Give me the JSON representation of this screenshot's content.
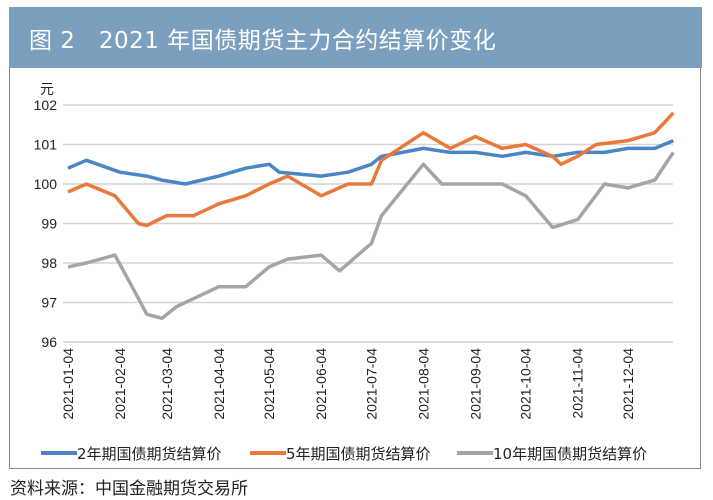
{
  "header": {
    "title": "图 2   2021 年国债期货主力合约结算价变化"
  },
  "source": "资料来源：中国金融期货交易所",
  "chart_data": {
    "type": "line",
    "title": "图 2   2021 年国债期货主力合约结算价变化",
    "ylabel": "元",
    "xlabel": "",
    "ylim": [
      96,
      102
    ],
    "yticks": [
      96,
      97,
      98,
      99,
      100,
      101,
      102
    ],
    "xticks": [
      "2021-01-04",
      "2021-02-04",
      "2021-03-04",
      "2021-04-04",
      "2021-05-04",
      "2021-06-04",
      "2021-07-04",
      "2021-08-04",
      "2021-09-04",
      "2021-10-04",
      "2021-11-04",
      "2021-12-04"
    ],
    "grid": "horizontal",
    "legend": "bottom",
    "series": [
      {
        "name": "2年期国债期货结算价",
        "color": "#4a86c5",
        "points": [
          [
            "2021-01-04",
            100.4
          ],
          [
            "2021-01-15",
            100.6
          ],
          [
            "2021-02-04",
            100.3
          ],
          [
            "2021-02-20",
            100.2
          ],
          [
            "2021-03-01",
            100.1
          ],
          [
            "2021-03-15",
            100.0
          ],
          [
            "2021-04-04",
            100.2
          ],
          [
            "2021-04-20",
            100.4
          ],
          [
            "2021-05-04",
            100.5
          ],
          [
            "2021-05-10",
            100.3
          ],
          [
            "2021-06-04",
            100.2
          ],
          [
            "2021-06-20",
            100.3
          ],
          [
            "2021-07-04",
            100.5
          ],
          [
            "2021-07-10",
            100.7
          ],
          [
            "2021-08-04",
            100.9
          ],
          [
            "2021-08-20",
            100.8
          ],
          [
            "2021-09-04",
            100.8
          ],
          [
            "2021-09-20",
            100.7
          ],
          [
            "2021-10-04",
            100.8
          ],
          [
            "2021-10-20",
            100.7
          ],
          [
            "2021-11-04",
            100.8
          ],
          [
            "2021-11-20",
            100.8
          ],
          [
            "2021-12-04",
            100.9
          ],
          [
            "2021-12-20",
            100.9
          ],
          [
            "2021-12-31",
            101.1
          ]
        ]
      },
      {
        "name": "5年期国债期货结算价",
        "color": "#e8793a",
        "points": [
          [
            "2021-01-04",
            99.8
          ],
          [
            "2021-01-15",
            100.0
          ],
          [
            "2021-02-01",
            99.7
          ],
          [
            "2021-02-15",
            99.0
          ],
          [
            "2021-02-20",
            98.95
          ],
          [
            "2021-03-04",
            99.2
          ],
          [
            "2021-03-20",
            99.2
          ],
          [
            "2021-04-04",
            99.5
          ],
          [
            "2021-04-20",
            99.7
          ],
          [
            "2021-05-04",
            100.0
          ],
          [
            "2021-05-15",
            100.2
          ],
          [
            "2021-06-04",
            99.7
          ],
          [
            "2021-06-20",
            100.0
          ],
          [
            "2021-07-04",
            100.0
          ],
          [
            "2021-07-10",
            100.6
          ],
          [
            "2021-08-04",
            101.3
          ],
          [
            "2021-08-20",
            100.9
          ],
          [
            "2021-09-04",
            101.2
          ],
          [
            "2021-09-20",
            100.9
          ],
          [
            "2021-10-04",
            101.0
          ],
          [
            "2021-10-20",
            100.7
          ],
          [
            "2021-10-25",
            100.5
          ],
          [
            "2021-11-04",
            100.7
          ],
          [
            "2021-11-15",
            101.0
          ],
          [
            "2021-12-04",
            101.1
          ],
          [
            "2021-12-20",
            101.3
          ],
          [
            "2021-12-31",
            101.8
          ]
        ]
      },
      {
        "name": "10年期国债期货结算价",
        "color": "#a5a5a5",
        "points": [
          [
            "2021-01-04",
            97.9
          ],
          [
            "2021-01-15",
            98.0
          ],
          [
            "2021-02-01",
            98.2
          ],
          [
            "2021-02-10",
            97.5
          ],
          [
            "2021-02-20",
            96.7
          ],
          [
            "2021-03-01",
            96.6
          ],
          [
            "2021-03-10",
            96.9
          ],
          [
            "2021-03-20",
            97.1
          ],
          [
            "2021-04-04",
            97.4
          ],
          [
            "2021-04-20",
            97.4
          ],
          [
            "2021-05-04",
            97.9
          ],
          [
            "2021-05-15",
            98.1
          ],
          [
            "2021-06-04",
            98.2
          ],
          [
            "2021-06-15",
            97.8
          ],
          [
            "2021-07-04",
            98.5
          ],
          [
            "2021-07-10",
            99.2
          ],
          [
            "2021-08-04",
            100.5
          ],
          [
            "2021-08-15",
            100.0
          ],
          [
            "2021-09-04",
            100.0
          ],
          [
            "2021-09-20",
            100.0
          ],
          [
            "2021-10-04",
            99.7
          ],
          [
            "2021-10-20",
            98.9
          ],
          [
            "2021-11-04",
            99.1
          ],
          [
            "2021-11-20",
            100.0
          ],
          [
            "2021-12-04",
            99.9
          ],
          [
            "2021-12-20",
            100.1
          ],
          [
            "2021-12-31",
            100.8
          ]
        ]
      }
    ]
  }
}
